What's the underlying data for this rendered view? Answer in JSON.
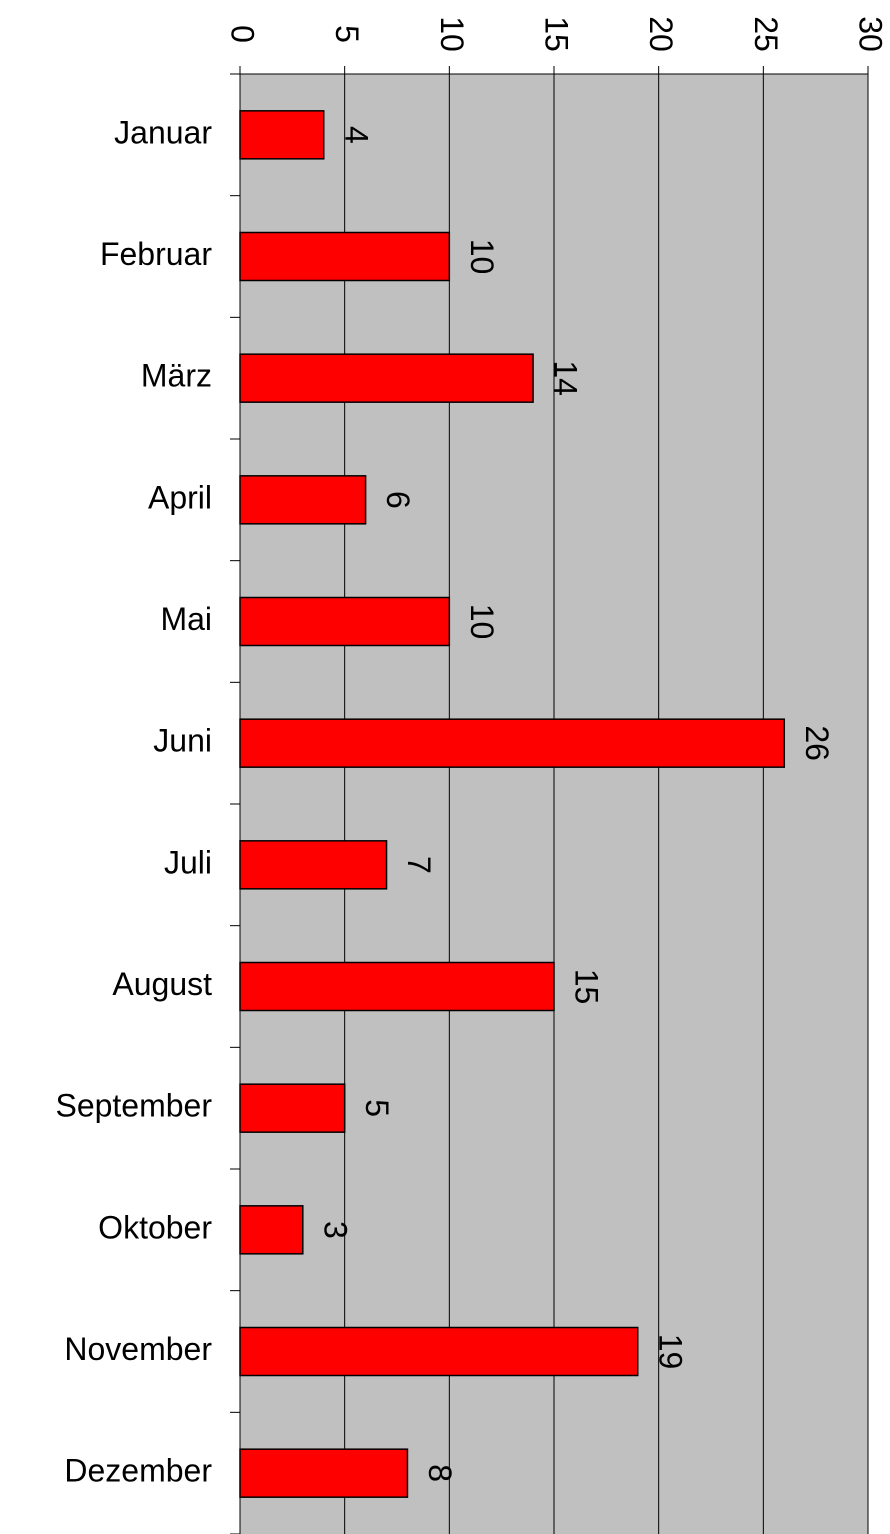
{
  "chart_data": {
    "type": "bar",
    "orientation": "horizontal",
    "categories": [
      "Januar",
      "Februar",
      "März",
      "April",
      "Mai",
      "Juni",
      "Juli",
      "August",
      "September",
      "Oktober",
      "November",
      "Dezember"
    ],
    "values": [
      4,
      10,
      14,
      6,
      10,
      26,
      7,
      15,
      5,
      3,
      19,
      8
    ],
    "color": "#ff0000",
    "plot_background": "#c0c0c0",
    "xlim": [
      0,
      30
    ],
    "xticks": [
      0,
      5,
      10,
      15,
      20,
      25,
      30
    ],
    "grid": true
  }
}
